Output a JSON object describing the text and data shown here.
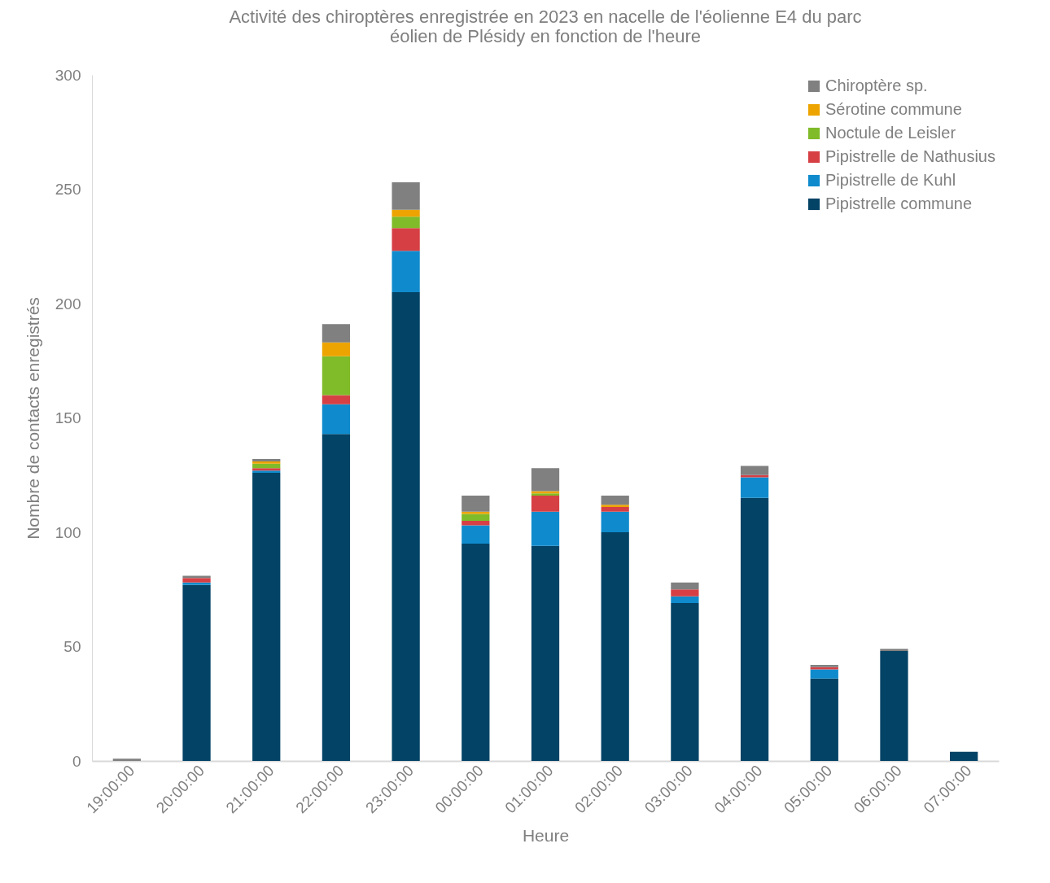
{
  "chart_data": {
    "type": "bar",
    "title": "Activité des chiroptères enregistrée en 2023 en nacelle de l'éolienne E4 du parc éolien de Plésidy en fonction de l'heure",
    "xlabel": "Heure",
    "ylabel": "Nombre de contacts enregistrés",
    "categories": [
      "19:00:00",
      "20:00:00",
      "21:00:00",
      "22:00:00",
      "23:00:00",
      "00:00:00",
      "01:00:00",
      "02:00:00",
      "03:00:00",
      "04:00:00",
      "05:00:00",
      "06:00:00",
      "07:00:00"
    ],
    "stacked": true,
    "series": [
      {
        "name": "Pipistrelle commune",
        "color": "#034366",
        "values": [
          0,
          77,
          126,
          143,
          205,
          95,
          94,
          100,
          69,
          115,
          36,
          48,
          4
        ]
      },
      {
        "name": "Pipistrelle de Kuhl",
        "color": "#0f8bcd",
        "values": [
          0,
          1,
          1,
          13,
          18,
          8,
          15,
          9,
          3,
          9,
          4,
          0,
          0
        ]
      },
      {
        "name": "Pipistrelle de Nathusius",
        "color": "#d64045",
        "values": [
          0,
          2,
          1,
          4,
          10,
          2,
          7,
          2,
          3,
          1,
          1,
          0,
          0
        ]
      },
      {
        "name": "Noctule de Leisler",
        "color": "#80bb29",
        "values": [
          0,
          0,
          2,
          17,
          5,
          3,
          1,
          0,
          0,
          0,
          0,
          0,
          0
        ]
      },
      {
        "name": "Sérotine commune",
        "color": "#eda400",
        "values": [
          0,
          0,
          1,
          6,
          3,
          1,
          1,
          1,
          0,
          0,
          0,
          0,
          0
        ]
      },
      {
        "name": "Chiroptère sp.",
        "color": "#808080",
        "values": [
          1,
          1,
          1,
          8,
          12,
          7,
          10,
          4,
          3,
          4,
          1,
          1,
          0
        ]
      }
    ],
    "ylim": [
      0,
      300
    ],
    "yticks": [
      0,
      50,
      100,
      150,
      200,
      250,
      300
    ],
    "grid": false,
    "legend": "top right"
  }
}
